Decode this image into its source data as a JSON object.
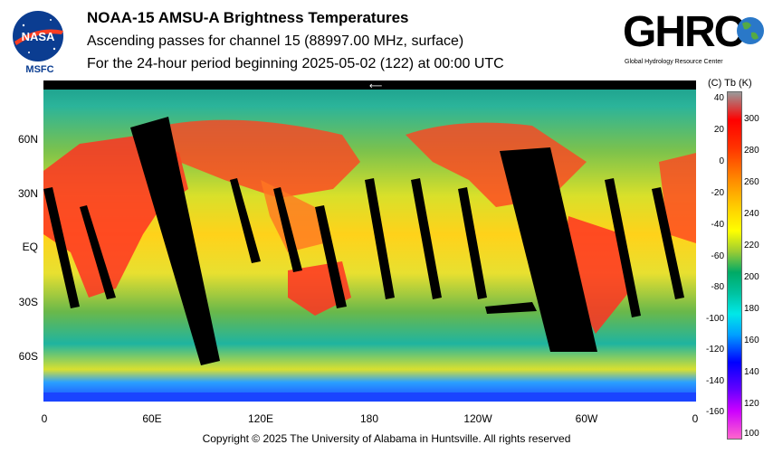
{
  "header": {
    "title": "NOAA-15 AMSU-A Brightness Temperatures",
    "subtitle1": "Ascending passes for channel 15 (88997.00 MHz, surface)",
    "subtitle2": "For the 24-hour period beginning 2025-05-02 (122) at 00:00 UTC"
  },
  "logos": {
    "nasa_text": "NASA",
    "msfc_text": "MSFC",
    "ghrc_text": "GHRC",
    "ghrc_subtitle": "Global Hydrology Resource Center"
  },
  "map": {
    "lat_labels": [
      "60N",
      "30N",
      "EQ",
      "30S",
      "60S"
    ],
    "lon_labels": [
      "0",
      "60E",
      "120E",
      "180",
      "120W",
      "60W",
      "0"
    ]
  },
  "colorbar": {
    "units_label": "(C)  Tb  (K)",
    "celsius_ticks": [
      "40",
      "20",
      "0",
      "-20",
      "-40",
      "-60",
      "-80",
      "-100",
      "-120",
      "-140",
      "-160"
    ],
    "kelvin_ticks": [
      "300",
      "280",
      "260",
      "240",
      "220",
      "200",
      "180",
      "160",
      "140",
      "120",
      "100"
    ]
  },
  "footer": {
    "copyright": "Copyright © 2025 The University of Alabama in Huntsville.  All rights reserved"
  }
}
